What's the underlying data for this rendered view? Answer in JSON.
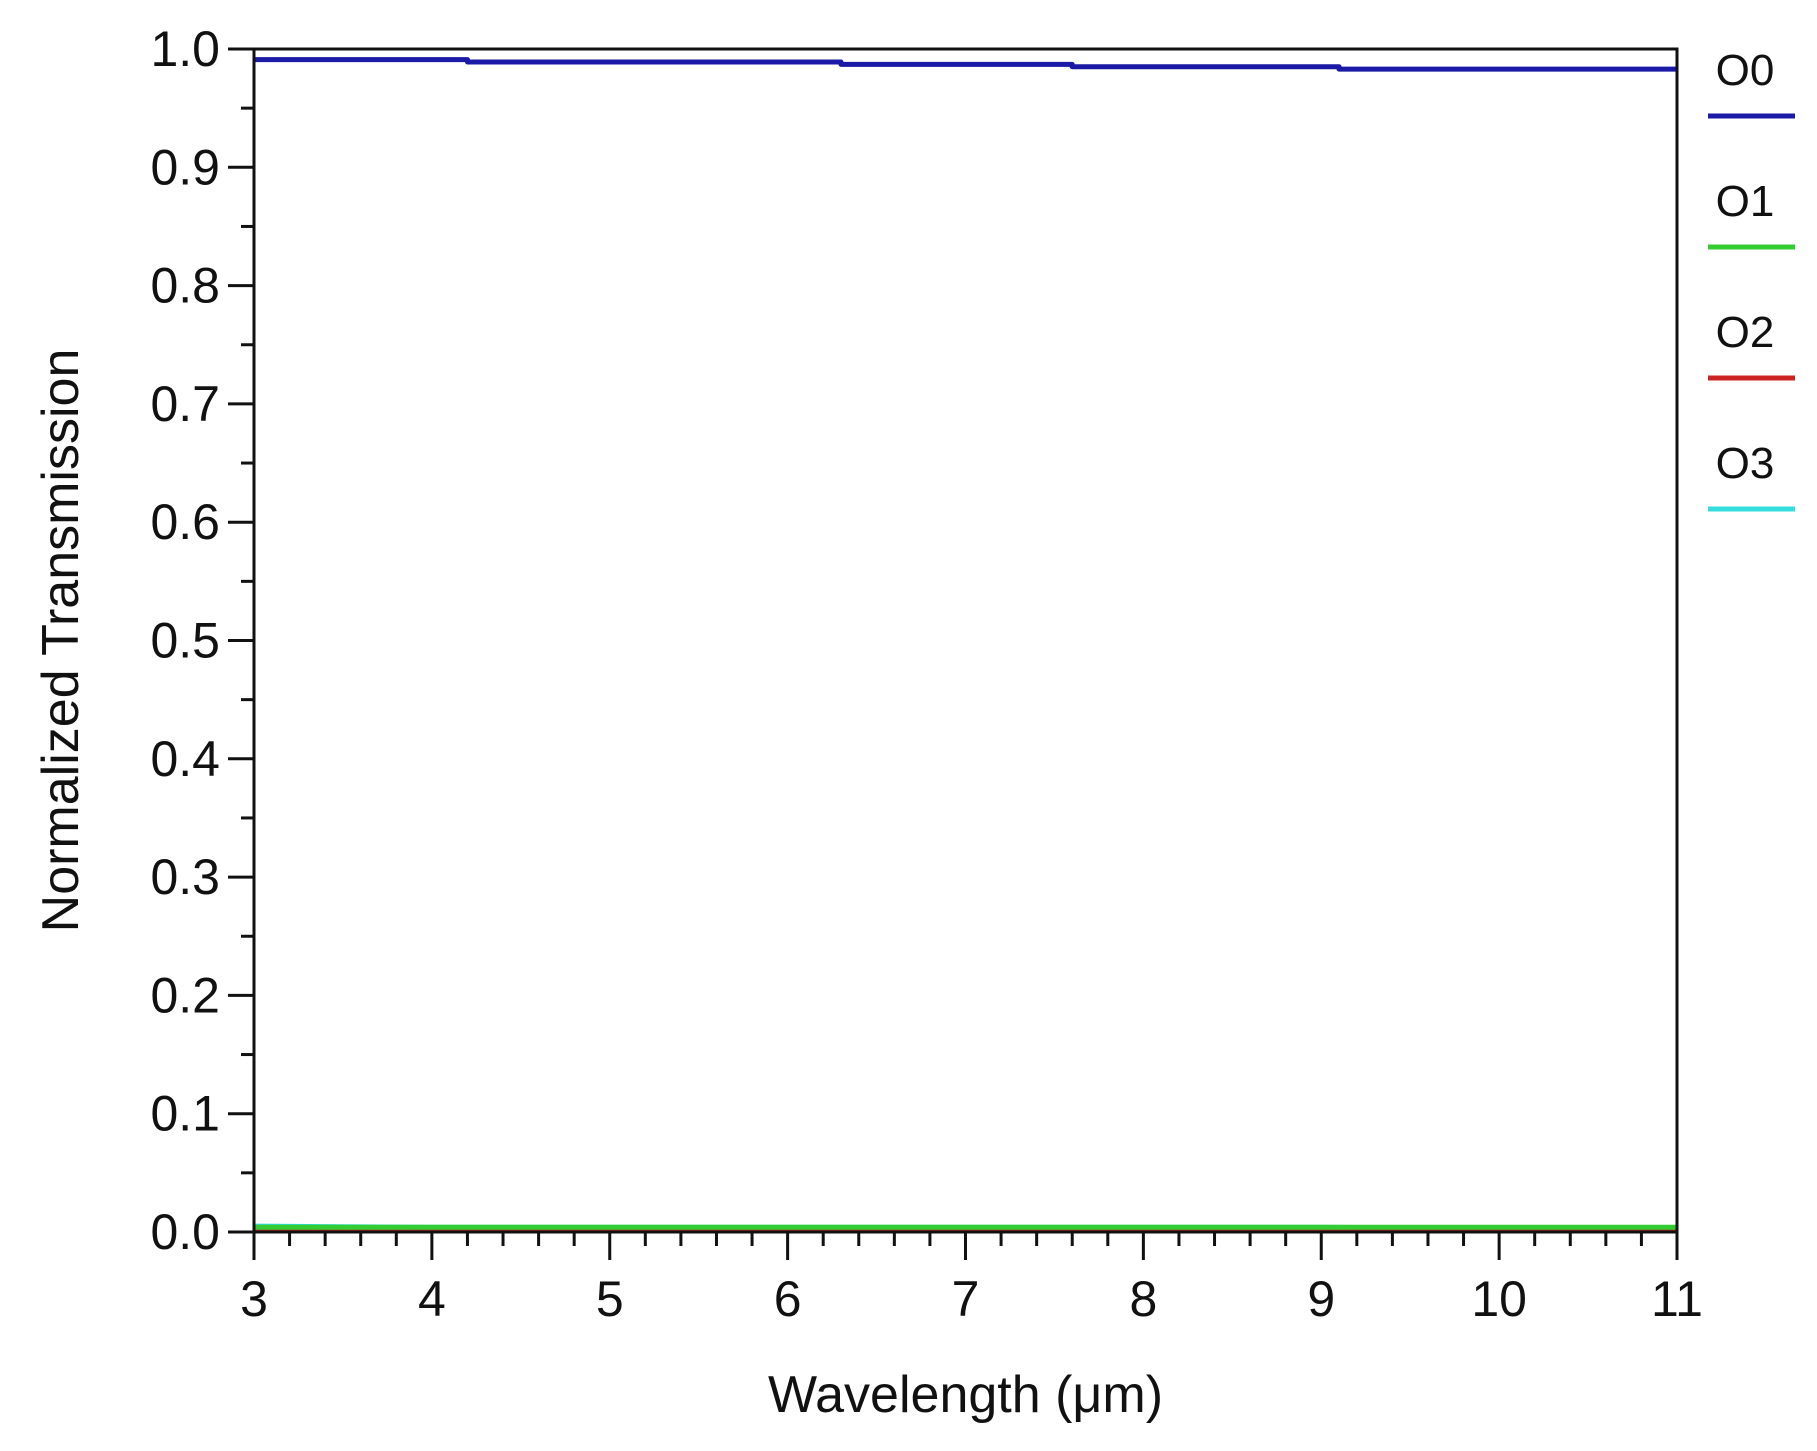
{
  "chart_data": {
    "type": "line",
    "title": "",
    "xlabel": "Wavelength (μm)",
    "ylabel": "Normalized Transmission",
    "xlim": [
      3,
      11
    ],
    "ylim": [
      0.0,
      1.0
    ],
    "x_ticks": [
      3,
      4,
      5,
      6,
      7,
      8,
      9,
      10,
      11
    ],
    "x_tick_labels": [
      "3",
      "4",
      "5",
      "6",
      "7",
      "8",
      "9",
      "10",
      "11"
    ],
    "y_ticks": [
      0.0,
      0.1,
      0.2,
      0.3,
      0.4,
      0.5,
      0.6,
      0.7,
      0.8,
      0.9,
      1.0
    ],
    "y_tick_labels": [
      "0.0",
      "0.1",
      "0.2",
      "0.3",
      "0.4",
      "0.5",
      "0.6",
      "0.7",
      "0.8",
      "0.9",
      "1.0"
    ],
    "x_minor_step": 0.2,
    "y_minor_step": 0.05,
    "grid": false,
    "legend_position": "right",
    "series": [
      {
        "name": "O0",
        "color": "#1a1aa6",
        "x": [
          3,
          4.2,
          4.2,
          6.3,
          6.3,
          7.6,
          7.6,
          9.1,
          9.1,
          11
        ],
        "values": [
          0.991,
          0.991,
          0.989,
          0.989,
          0.987,
          0.987,
          0.985,
          0.985,
          0.983,
          0.983
        ]
      },
      {
        "name": "O1",
        "color": "#33cc33",
        "x": [
          3,
          4,
          5,
          6,
          7,
          8,
          9,
          10,
          11
        ],
        "values": [
          0.004,
          0.004,
          0.004,
          0.004,
          0.004,
          0.004,
          0.004,
          0.004,
          0.004
        ]
      },
      {
        "name": "O2",
        "color": "#cc2222",
        "x": [
          3,
          4,
          5,
          6,
          7,
          8,
          9,
          10,
          11
        ],
        "values": [
          0.002,
          0.002,
          0.002,
          0.002,
          0.002,
          0.002,
          0.002,
          0.002,
          0.002
        ]
      },
      {
        "name": "O3",
        "color": "#33dddd",
        "x": [
          3,
          4,
          5,
          6,
          7,
          8,
          9,
          10,
          11
        ],
        "values": [
          0.005,
          0.004,
          0.004,
          0.004,
          0.004,
          0.004,
          0.004,
          0.003,
          0.003
        ]
      }
    ]
  }
}
